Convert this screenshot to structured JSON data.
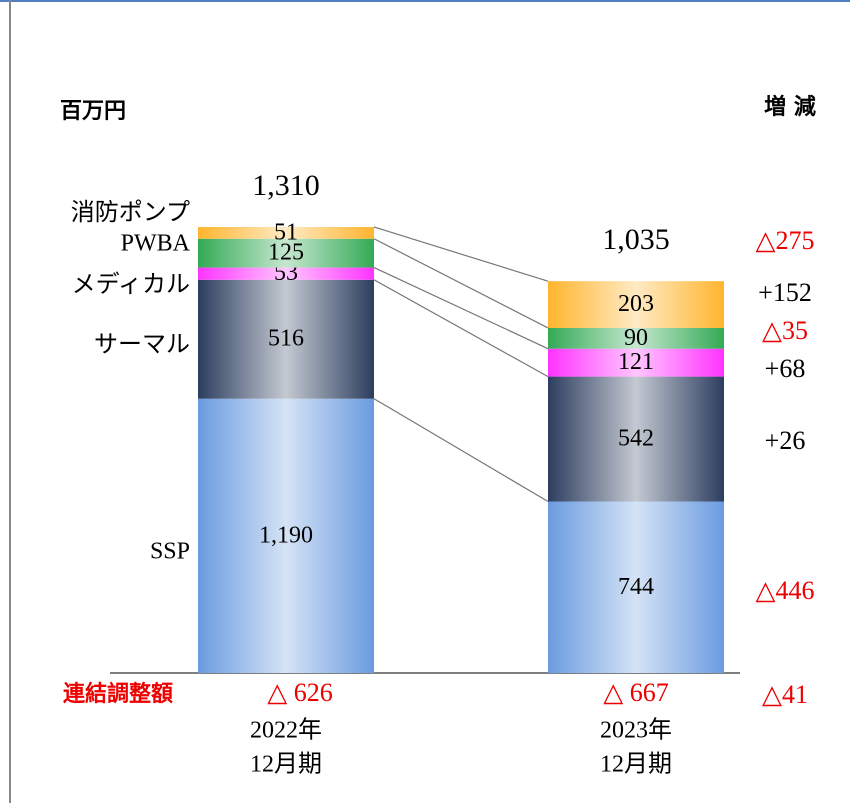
{
  "chart_data": {
    "type": "stacked_bar",
    "unit_label": "百万円",
    "change_header": "増 減",
    "categories": [
      [
        "2022年",
        "12月期"
      ],
      [
        "2023年",
        "12月期"
      ]
    ],
    "series": [
      {
        "name": "SSP",
        "color": "#6a9be0",
        "values": [
          1190,
          744
        ],
        "value_labels": [
          "1,190",
          "744"
        ],
        "change": -446,
        "change_label": "△446"
      },
      {
        "name": "サーマル",
        "color": "#2c3d5e",
        "values": [
          516,
          542
        ],
        "change": 26,
        "change_label": "+26"
      },
      {
        "name": "メディカル",
        "color": "#ff33ff",
        "values": [
          53,
          121
        ],
        "change": 68,
        "change_label": "+68"
      },
      {
        "name": "PWBA",
        "color": "#33aa55",
        "values": [
          125,
          90
        ],
        "change": -35,
        "change_label": "△35"
      },
      {
        "name": "消防ポンプ",
        "color": "#ffb52e",
        "values": [
          51,
          203
        ],
        "change": 152,
        "change_label": "+152"
      }
    ],
    "totals": {
      "values": [
        1310,
        1035
      ],
      "value_labels": [
        "1,310",
        "1,035"
      ],
      "change": -275,
      "change_label": "△275"
    },
    "adjustment": {
      "name": "連結調整額",
      "values": [
        -626,
        -667
      ],
      "value_labels": [
        "△ 626",
        "△ 667"
      ],
      "change": -41,
      "change_label": "△41"
    }
  }
}
